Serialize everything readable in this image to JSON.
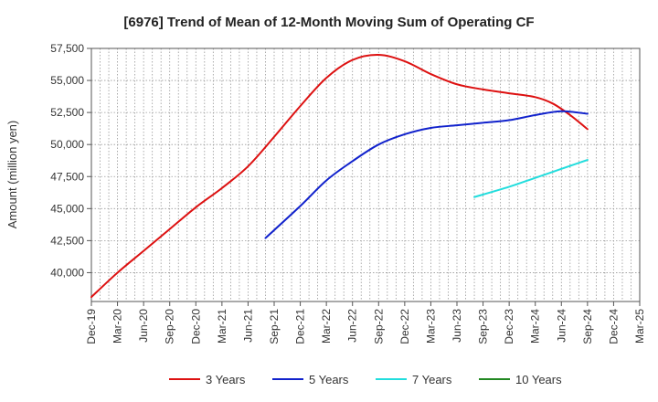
{
  "chart_data": {
    "type": "line",
    "title": "[6976]  Trend of Mean of 12-Month Moving Sum of Operating CF",
    "xlabel": "",
    "ylabel": "Amount (million yen)",
    "ylim": [
      37750,
      57500
    ],
    "yticks": [
      40000,
      42500,
      45000,
      47500,
      50000,
      52500,
      55000,
      57500
    ],
    "ytick_labels": [
      "40,000",
      "42,500",
      "45,000",
      "47,500",
      "50,000",
      "52,500",
      "55,000",
      "57,500"
    ],
    "x_start": "Dec-19",
    "x_end": "Mar-25",
    "xtick_labels": [
      "Dec-19",
      "Mar-20",
      "Jun-20",
      "Sep-20",
      "Dec-20",
      "Mar-21",
      "Jun-21",
      "Sep-21",
      "Dec-21",
      "Mar-22",
      "Jun-22",
      "Sep-22",
      "Dec-22",
      "Mar-23",
      "Jun-23",
      "Sep-23",
      "Dec-23",
      "Mar-24",
      "Jun-24",
      "Sep-24",
      "Dec-24",
      "Mar-25"
    ],
    "grid": true,
    "legend_position": "bottom",
    "series": [
      {
        "name": "3 Years",
        "color": "#dd1111",
        "points": [
          [
            0,
            38100
          ],
          [
            3,
            40000
          ],
          [
            6,
            41700
          ],
          [
            9,
            43400
          ],
          [
            12,
            45100
          ],
          [
            15,
            46600
          ],
          [
            18,
            48300
          ],
          [
            21,
            50600
          ],
          [
            24,
            53000
          ],
          [
            27,
            55200
          ],
          [
            30,
            56600
          ],
          [
            33,
            57000
          ],
          [
            36,
            56500
          ],
          [
            39,
            55500
          ],
          [
            42,
            54700
          ],
          [
            45,
            54300
          ],
          [
            48,
            54000
          ],
          [
            51,
            53700
          ],
          [
            53,
            53200
          ],
          [
            55,
            52300
          ],
          [
            57,
            51200
          ]
        ]
      },
      {
        "name": "5 Years",
        "color": "#1122cc",
        "points": [
          [
            20,
            42700
          ],
          [
            24,
            45200
          ],
          [
            27,
            47200
          ],
          [
            30,
            48700
          ],
          [
            33,
            50000
          ],
          [
            36,
            50800
          ],
          [
            39,
            51300
          ],
          [
            42,
            51500
          ],
          [
            45,
            51700
          ],
          [
            48,
            51900
          ],
          [
            51,
            52300
          ],
          [
            54,
            52600
          ],
          [
            57,
            52400
          ]
        ]
      },
      {
        "name": "7 Years",
        "color": "#22dddd",
        "points": [
          [
            44,
            45900
          ],
          [
            48,
            46700
          ],
          [
            51,
            47400
          ],
          [
            54,
            48100
          ],
          [
            57,
            48800
          ]
        ]
      },
      {
        "name": "10 Years",
        "color": "#228822",
        "points": []
      }
    ]
  }
}
